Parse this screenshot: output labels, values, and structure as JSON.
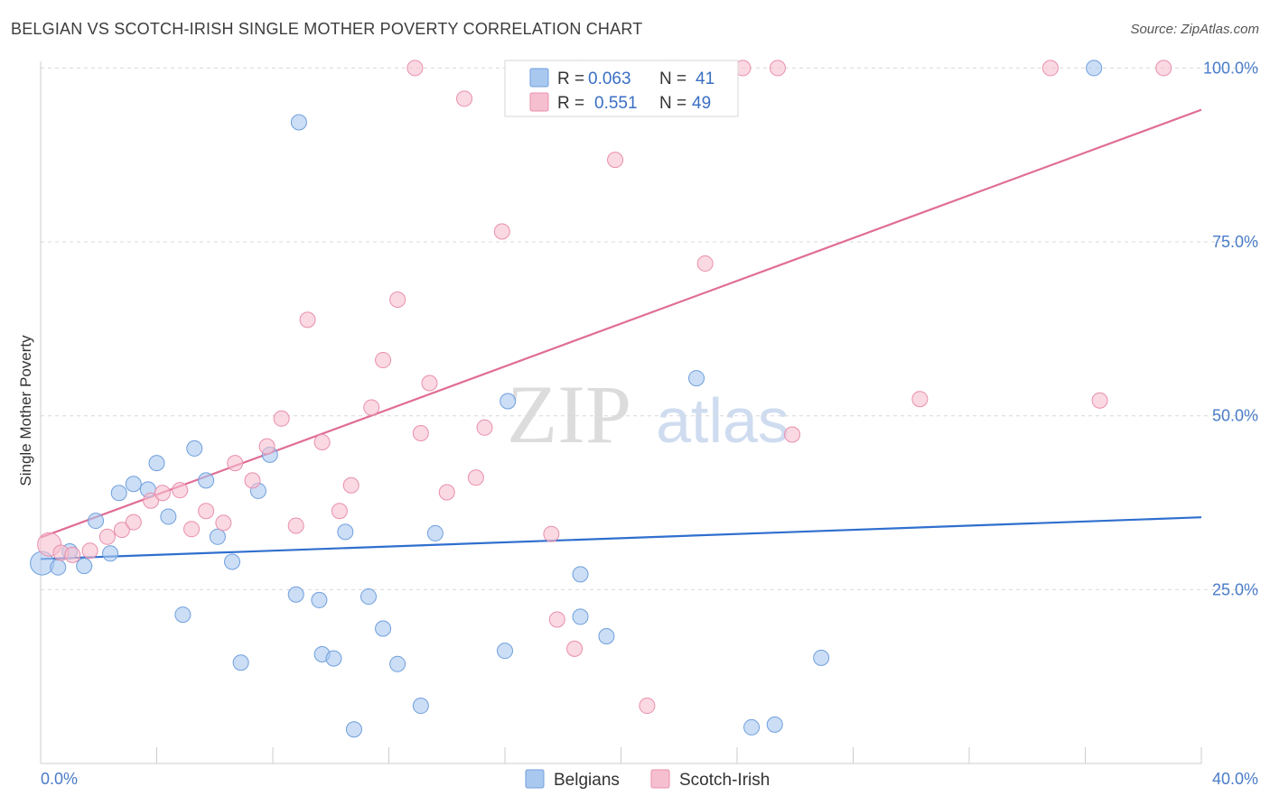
{
  "header": {
    "title": "BELGIAN VS SCOTCH-IRISH SINGLE MOTHER POVERTY CORRELATION CHART",
    "source": "Source: ZipAtlas.com"
  },
  "watermark": {
    "zip": "ZIP",
    "atlas": "atlas"
  },
  "colors": {
    "belgians_fill": "#a9c8f0",
    "belgians_stroke": "#6f9fdc",
    "belgians_line": "#2f6fce",
    "scotch_fill": "#f6bfd0",
    "scotch_stroke": "#e98fac",
    "scotch_line": "#e06d96",
    "tick_label": "#4a7cc8"
  },
  "legend": {
    "rows": [
      {
        "r_label": "R =",
        "r_value": "0.063",
        "n_label": "N =",
        "n_value": "41"
      },
      {
        "r_label": "R =",
        "r_value": "0.551",
        "n_label": "N =",
        "n_value": "49"
      }
    ]
  },
  "bottom_legend": {
    "items": [
      "Belgians",
      "Scotch-Irish"
    ]
  },
  "chart_data": {
    "type": "scatter",
    "title": "BELGIAN VS SCOTCH-IRISH SINGLE MOTHER POVERTY CORRELATION CHART",
    "xlabel": "",
    "ylabel": "Single Mother Poverty",
    "xlim": [
      0,
      40
    ],
    "ylim": [
      0,
      102
    ],
    "x_tick_labels": [
      "0.0%",
      "40.0%"
    ],
    "y_ticks": [
      25,
      50,
      75,
      100
    ],
    "y_tick_labels": [
      "25.0%",
      "50.0%",
      "75.0%",
      "100.0%"
    ],
    "grid": true,
    "legend_position": "top-center",
    "series": [
      {
        "name": "Belgians",
        "r": 0.063,
        "n": 41,
        "trend": {
          "x": [
            0,
            40
          ],
          "y": [
            29.4,
            35.4
          ]
        },
        "points": [
          [
            0.05,
            28.8
          ],
          [
            0.6,
            28.2
          ],
          [
            1.0,
            30.5
          ],
          [
            1.5,
            28.4
          ],
          [
            1.9,
            34.9
          ],
          [
            2.4,
            30.2
          ],
          [
            2.7,
            38.9
          ],
          [
            3.2,
            40.2
          ],
          [
            3.7,
            39.4
          ],
          [
            4.0,
            43.2
          ],
          [
            4.4,
            35.5
          ],
          [
            4.9,
            21.4
          ],
          [
            5.3,
            45.3
          ],
          [
            5.7,
            40.7
          ],
          [
            6.1,
            32.6
          ],
          [
            6.6,
            29.0
          ],
          [
            6.9,
            14.5
          ],
          [
            7.5,
            39.2
          ],
          [
            7.9,
            44.4
          ],
          [
            8.8,
            24.3
          ],
          [
            8.9,
            92.2
          ],
          [
            9.6,
            23.5
          ],
          [
            9.7,
            15.7
          ],
          [
            10.1,
            15.1
          ],
          [
            10.5,
            33.3
          ],
          [
            10.8,
            4.9
          ],
          [
            11.3,
            24.0
          ],
          [
            11.8,
            19.4
          ],
          [
            12.3,
            14.3
          ],
          [
            13.1,
            8.3
          ],
          [
            13.6,
            33.1
          ],
          [
            16.0,
            16.2
          ],
          [
            16.1,
            52.1
          ],
          [
            18.6,
            27.2
          ],
          [
            18.6,
            21.1
          ],
          [
            19.5,
            18.3
          ],
          [
            22.6,
            55.4
          ],
          [
            24.5,
            5.2
          ],
          [
            25.3,
            5.6
          ],
          [
            26.9,
            15.2
          ],
          [
            36.3,
            100.0
          ]
        ]
      },
      {
        "name": "Scotch-Irish",
        "r": 0.551,
        "n": 49,
        "trend": {
          "x": [
            0,
            40
          ],
          "y": [
            32.5,
            94.0
          ]
        },
        "points": [
          [
            0.3,
            31.5
          ],
          [
            0.7,
            30.3
          ],
          [
            1.1,
            30.0
          ],
          [
            1.7,
            30.6
          ],
          [
            2.3,
            32.6
          ],
          [
            2.8,
            33.6
          ],
          [
            3.2,
            34.7
          ],
          [
            3.8,
            37.8
          ],
          [
            4.2,
            38.9
          ],
          [
            4.8,
            39.3
          ],
          [
            5.2,
            33.7
          ],
          [
            5.7,
            36.3
          ],
          [
            6.3,
            34.6
          ],
          [
            6.7,
            43.2
          ],
          [
            7.3,
            40.7
          ],
          [
            7.8,
            45.6
          ],
          [
            8.3,
            49.6
          ],
          [
            8.8,
            34.2
          ],
          [
            9.2,
            63.8
          ],
          [
            9.7,
            46.2
          ],
          [
            10.3,
            36.3
          ],
          [
            10.7,
            40.0
          ],
          [
            11.4,
            51.2
          ],
          [
            11.8,
            58.0
          ],
          [
            12.3,
            66.7
          ],
          [
            12.9,
            100.0
          ],
          [
            13.1,
            47.5
          ],
          [
            13.4,
            54.7
          ],
          [
            14.0,
            39.0
          ],
          [
            14.6,
            95.6
          ],
          [
            15.0,
            41.1
          ],
          [
            15.3,
            48.3
          ],
          [
            15.9,
            76.5
          ],
          [
            17.6,
            33.0
          ],
          [
            17.8,
            20.7
          ],
          [
            18.5,
            100.0
          ],
          [
            18.4,
            16.5
          ],
          [
            19.8,
            86.8
          ],
          [
            20.9,
            8.3
          ],
          [
            21.5,
            100.0
          ],
          [
            22.0,
            100.0
          ],
          [
            22.9,
            71.9
          ],
          [
            24.2,
            100.0
          ],
          [
            25.4,
            100.0
          ],
          [
            25.9,
            47.3
          ],
          [
            30.3,
            52.4
          ],
          [
            34.8,
            100.0
          ],
          [
            36.5,
            52.2
          ],
          [
            38.7,
            100.0
          ]
        ]
      }
    ]
  }
}
